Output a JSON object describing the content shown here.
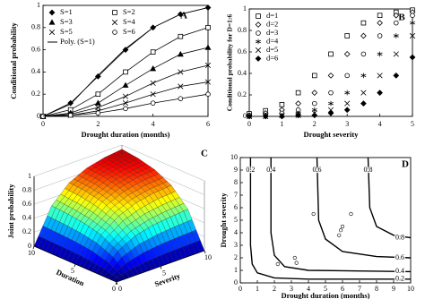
{
  "chart_data": [
    {
      "type": "line",
      "panel_label": "A",
      "x_label": "Drought duration (months)",
      "y_label": "Conditional probability",
      "color": "#000000",
      "x": [
        0,
        1,
        2,
        3,
        4,
        5,
        6
      ],
      "xlim": [
        0,
        6
      ],
      "xticks": [
        0,
        2,
        4,
        6
      ],
      "ylim": [
        0,
        1
      ],
      "yticks": [
        0,
        0.2,
        0.4,
        0.6,
        0.8,
        1
      ],
      "series": [
        {
          "name": "S=1",
          "marker": "diamond-filled",
          "values": [
            0,
            0.12,
            0.36,
            0.6,
            0.8,
            0.92,
            0.98
          ]
        },
        {
          "name": "S=2",
          "marker": "square-open",
          "values": [
            0,
            0.06,
            0.2,
            0.4,
            0.58,
            0.72,
            0.8
          ]
        },
        {
          "name": "S=3",
          "marker": "triangle-filled",
          "values": [
            0,
            0.03,
            0.12,
            0.28,
            0.43,
            0.56,
            0.62
          ]
        },
        {
          "name": "S=4",
          "marker": "x",
          "values": [
            0,
            0.02,
            0.08,
            0.18,
            0.3,
            0.4,
            0.46
          ]
        },
        {
          "name": "S=5",
          "marker": "x",
          "values": [
            0,
            0.01,
            0.05,
            0.12,
            0.2,
            0.27,
            0.31
          ]
        },
        {
          "name": "S=6",
          "marker": "circle-open",
          "values": [
            0,
            0.01,
            0.03,
            0.07,
            0.12,
            0.16,
            0.2
          ]
        },
        {
          "name": "Poly. (S=1)",
          "marker": "none",
          "values": [
            0,
            0.11,
            0.37,
            0.61,
            0.8,
            0.92,
            0.98
          ]
        }
      ]
    },
    {
      "type": "scatter",
      "panel_label": "B",
      "x_label": "Drought severity",
      "y_label": "Conditional probability for D=1:6",
      "color": "#000000",
      "x": [
        0,
        0.5,
        1,
        1.5,
        2,
        2.5,
        3,
        3.5,
        4,
        4.5,
        5
      ],
      "xlim": [
        0,
        5
      ],
      "xticks": [
        0,
        1,
        2,
        3,
        4,
        5
      ],
      "ylim": [
        0,
        1
      ],
      "yticks": [
        0,
        0.2,
        0.4,
        0.6,
        0.8,
        1
      ],
      "series": [
        {
          "name": "d=1",
          "marker": "square-open",
          "values": [
            0.025,
            0.053,
            0.11,
            0.22,
            0.38,
            0.58,
            0.75,
            0.87,
            0.94,
            0.97,
            0.99
          ]
        },
        {
          "name": "d=2",
          "marker": "diamond-open",
          "values": [
            0.01,
            0.03,
            0.06,
            0.12,
            0.22,
            0.38,
            0.58,
            0.75,
            0.87,
            0.94,
            0.97
          ]
        },
        {
          "name": "d=3",
          "marker": "circle-open",
          "values": [
            0.01,
            0.01,
            0.03,
            0.06,
            0.12,
            0.22,
            0.38,
            0.58,
            0.75,
            0.87,
            0.94
          ]
        },
        {
          "name": "d=4",
          "marker": "star",
          "values": [
            0,
            0.01,
            0.01,
            0.03,
            0.06,
            0.12,
            0.22,
            0.38,
            0.58,
            0.75,
            0.87
          ]
        },
        {
          "name": "d=5",
          "marker": "x",
          "values": [
            0,
            0,
            0.01,
            0.01,
            0.03,
            0.06,
            0.12,
            0.22,
            0.38,
            0.58,
            0.75
          ]
        },
        {
          "name": "d=6",
          "marker": "diamond-filled",
          "values": [
            0,
            0,
            0,
            0.01,
            0.01,
            0.03,
            0.06,
            0.12,
            0.22,
            0.38,
            0.55
          ]
        }
      ]
    },
    {
      "type": "surface",
      "panel_label": "C",
      "x_label": "Duration",
      "y_label": "Severity",
      "z_label": "Joint probability",
      "colormap": "jet",
      "x": [
        0,
        2,
        4,
        6,
        8,
        10
      ],
      "y": [
        0,
        2,
        4,
        6,
        8,
        10
      ],
      "xlim": [
        0,
        10
      ],
      "xticks": [
        0,
        5,
        10
      ],
      "ylim": [
        0,
        10
      ],
      "yticks": [
        0,
        5,
        10
      ],
      "zlim": [
        0,
        1
      ],
      "zticks": [
        0,
        0.2,
        0.4,
        0.6,
        0.8,
        1
      ],
      "z": [
        [
          0,
          0,
          0,
          0,
          0,
          0
        ],
        [
          0,
          0.25,
          0.38,
          0.44,
          0.47,
          0.49
        ],
        [
          0,
          0.38,
          0.56,
          0.66,
          0.71,
          0.73
        ],
        [
          0,
          0.44,
          0.66,
          0.77,
          0.83,
          0.85
        ],
        [
          0,
          0.47,
          0.71,
          0.83,
          0.88,
          0.91
        ],
        [
          0,
          0.49,
          0.73,
          0.85,
          0.91,
          0.94
        ]
      ]
    },
    {
      "type": "contour",
      "panel_label": "D",
      "x_label": "Drought duration (months)",
      "y_label": "Drought severity",
      "color": "#000000",
      "xlim": [
        0,
        10
      ],
      "xticks": [
        0,
        1,
        2,
        3,
        4,
        5,
        6,
        7,
        8,
        9,
        10
      ],
      "ylim": [
        0,
        10
      ],
      "yticks": [
        0,
        1,
        2,
        3,
        4,
        5,
        6,
        7,
        8,
        9,
        10
      ],
      "contours": [
        {
          "level": 0.2,
          "x": [
            0.6,
            0.6,
            0.7,
            1,
            2,
            4,
            10
          ],
          "y": [
            10,
            3,
            1.5,
            0.8,
            0.4,
            0.3,
            0.3
          ]
        },
        {
          "level": 0.4,
          "x": [
            1.8,
            1.8,
            2,
            2.6,
            4,
            10
          ],
          "y": [
            10,
            4,
            2.2,
            1.3,
            1,
            0.9
          ]
        },
        {
          "level": 0.6,
          "x": [
            4.5,
            4.6,
            5,
            6,
            8,
            10
          ],
          "y": [
            10,
            5,
            3.5,
            2.5,
            2.1,
            2
          ]
        },
        {
          "level": 0.8,
          "x": [
            7.5,
            7.6,
            8,
            9,
            10
          ],
          "y": [
            10,
            6,
            4.5,
            3.8,
            3.6
          ]
        }
      ],
      "observations": {
        "x": [
          5.8,
          5.9,
          6,
          3.2,
          3.3,
          4.3,
          2.2,
          6.5
        ],
        "y": [
          3.8,
          4.2,
          4.5,
          2,
          1.6,
          5.5,
          1.5,
          5.5
        ]
      }
    }
  ]
}
